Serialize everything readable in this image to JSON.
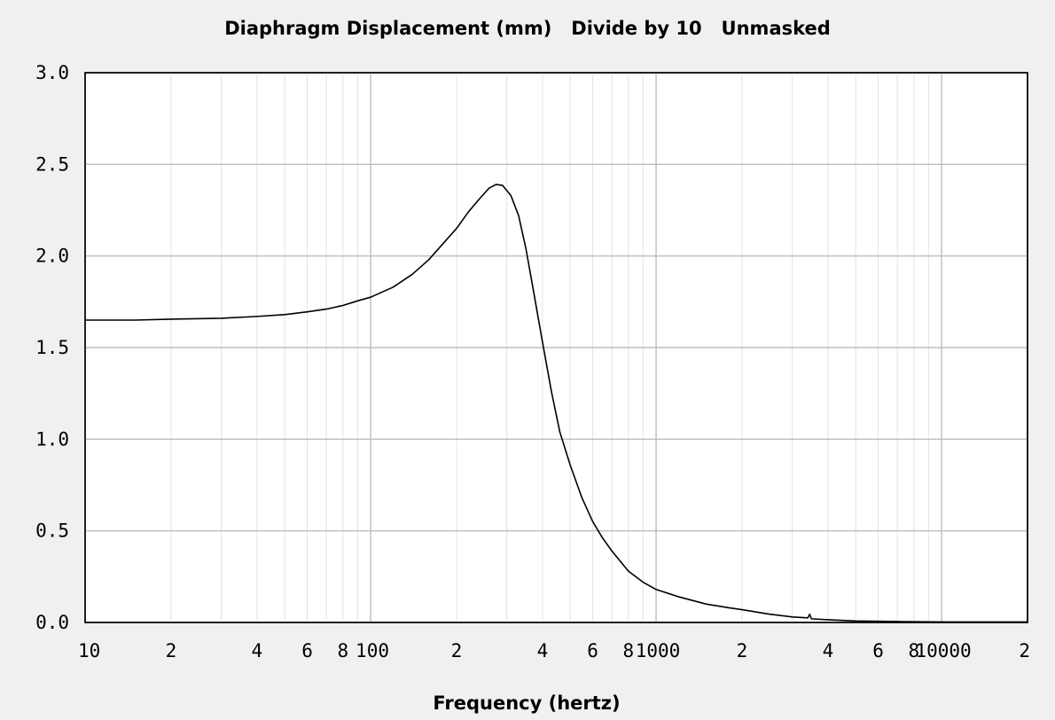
{
  "chart_data": {
    "type": "line",
    "title": "Diaphragm Displacement (mm)   Divide by 10   Unmasked",
    "xlabel": "Frequency (hertz)",
    "ylabel": "",
    "x_scale": "log",
    "xlim": [
      10,
      20000
    ],
    "ylim": [
      0,
      3.0
    ],
    "grid": true,
    "x_tick_labels": [
      {
        "value": 10,
        "label": "10"
      },
      {
        "value": 20,
        "label": "2"
      },
      {
        "value": 40,
        "label": "4"
      },
      {
        "value": 60,
        "label": "6"
      },
      {
        "value": 80,
        "label": "8"
      },
      {
        "value": 100,
        "label": "100"
      },
      {
        "value": 200,
        "label": "2"
      },
      {
        "value": 400,
        "label": "4"
      },
      {
        "value": 600,
        "label": "6"
      },
      {
        "value": 800,
        "label": "8"
      },
      {
        "value": 1000,
        "label": "1000"
      },
      {
        "value": 2000,
        "label": "2"
      },
      {
        "value": 4000,
        "label": "4"
      },
      {
        "value": 6000,
        "label": "6"
      },
      {
        "value": 8000,
        "label": "8"
      },
      {
        "value": 10000,
        "label": "10000"
      },
      {
        "value": 20000,
        "label": "2"
      }
    ],
    "y_tick_labels": [
      {
        "value": 0.0,
        "label": "0.0"
      },
      {
        "value": 0.5,
        "label": "0.5"
      },
      {
        "value": 1.0,
        "label": "1.0"
      },
      {
        "value": 1.5,
        "label": "1.5"
      },
      {
        "value": 2.0,
        "label": "2.0"
      },
      {
        "value": 2.5,
        "label": "2.5"
      },
      {
        "value": 3.0,
        "label": "3.0"
      }
    ],
    "series": [
      {
        "color": "#000000",
        "points": [
          [
            10,
            1.65
          ],
          [
            15,
            1.65
          ],
          [
            20,
            1.655
          ],
          [
            30,
            1.66
          ],
          [
            40,
            1.67
          ],
          [
            50,
            1.68
          ],
          [
            60,
            1.695
          ],
          [
            70,
            1.71
          ],
          [
            80,
            1.73
          ],
          [
            90,
            1.755
          ],
          [
            100,
            1.775
          ],
          [
            120,
            1.83
          ],
          [
            140,
            1.9
          ],
          [
            160,
            1.98
          ],
          [
            180,
            2.07
          ],
          [
            200,
            2.15
          ],
          [
            220,
            2.24
          ],
          [
            240,
            2.31
          ],
          [
            260,
            2.37
          ],
          [
            275,
            2.39
          ],
          [
            290,
            2.385
          ],
          [
            310,
            2.33
          ],
          [
            330,
            2.22
          ],
          [
            350,
            2.04
          ],
          [
            370,
            1.83
          ],
          [
            400,
            1.53
          ],
          [
            430,
            1.26
          ],
          [
            460,
            1.04
          ],
          [
            500,
            0.86
          ],
          [
            550,
            0.68
          ],
          [
            600,
            0.55
          ],
          [
            650,
            0.46
          ],
          [
            700,
            0.39
          ],
          [
            800,
            0.28
          ],
          [
            900,
            0.22
          ],
          [
            1000,
            0.18
          ],
          [
            1200,
            0.14
          ],
          [
            1500,
            0.1
          ],
          [
            1800,
            0.08
          ],
          [
            2000,
            0.07
          ],
          [
            2500,
            0.045
          ],
          [
            3000,
            0.03
          ],
          [
            3400,
            0.025
          ],
          [
            3450,
            0.045
          ],
          [
            3500,
            0.02
          ],
          [
            4000,
            0.015
          ],
          [
            5000,
            0.008
          ],
          [
            7000,
            0.005
          ],
          [
            10000,
            0.003
          ],
          [
            15000,
            0.003
          ],
          [
            20000,
            0.003
          ]
        ]
      }
    ]
  }
}
